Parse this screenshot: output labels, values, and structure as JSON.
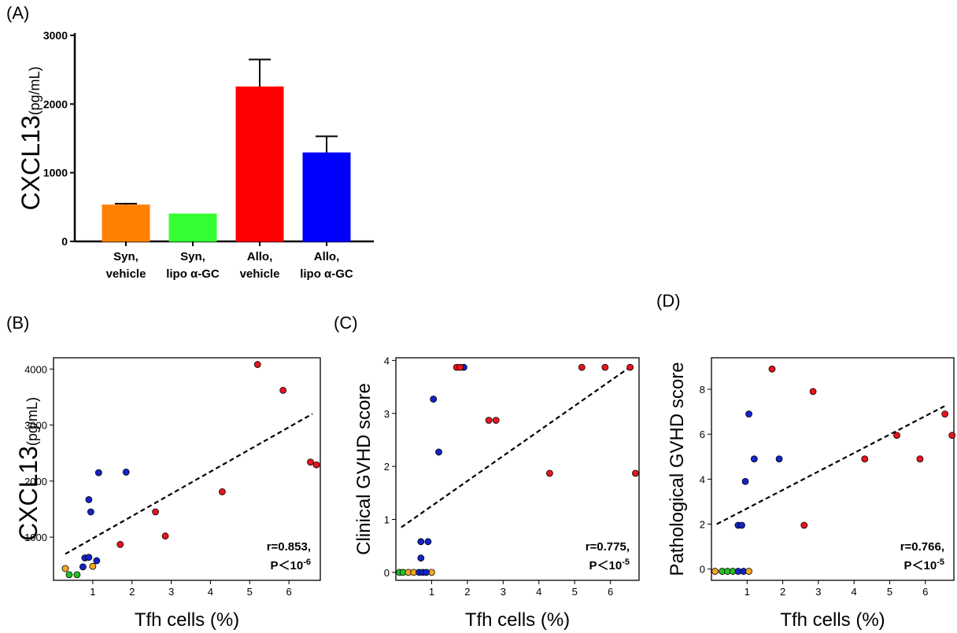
{
  "chart_data": [
    {
      "panel": "(A)",
      "type": "bar",
      "categories": [
        [
          "Syn,",
          "vehicle"
        ],
        [
          "Syn,",
          "lipo α-GC"
        ],
        [
          "Allo,",
          "vehicle"
        ],
        [
          "Allo,",
          "lipo α-GC"
        ]
      ],
      "values": [
        530,
        400,
        2250,
        1290
      ],
      "errors": [
        20,
        0,
        400,
        240
      ],
      "colors": [
        "#ff8000",
        "#33ff33",
        "#ff0000",
        "#0000ff"
      ],
      "ylabel_main": "CXCL13",
      "ylabel_unit": "(pg/mL)",
      "yticks": [
        0,
        1000,
        2000,
        3000
      ],
      "ylim": [
        0,
        3000
      ]
    },
    {
      "panel": "(B)",
      "type": "scatter",
      "xlabel": "Tfh cells (%)",
      "ylabel_main": "CXCL13",
      "ylabel_unit": "(pg/mL)",
      "xlim": [
        0,
        6.8
      ],
      "ylim": [
        230,
        4200
      ],
      "xticks": [
        1,
        2,
        3,
        4,
        5,
        6
      ],
      "yticks": [
        1000,
        2000,
        3000,
        4000
      ],
      "fit": {
        "x1": 0.3,
        "y1": 700,
        "x2": 6.6,
        "y2": 3200
      },
      "stat_r": "r=0.853,",
      "stat_p": "P＜10",
      "stat_exp": "-6",
      "points": [
        {
          "x": 0.3,
          "y": 440,
          "c": "orange"
        },
        {
          "x": 0.4,
          "y": 330,
          "c": "green"
        },
        {
          "x": 0.6,
          "y": 330,
          "c": "green"
        },
        {
          "x": 1.0,
          "y": 480,
          "c": "orange"
        },
        {
          "x": 0.75,
          "y": 470,
          "c": "blue"
        },
        {
          "x": 0.8,
          "y": 630,
          "c": "blue"
        },
        {
          "x": 0.9,
          "y": 640,
          "c": "blue"
        },
        {
          "x": 1.1,
          "y": 580,
          "c": "blue"
        },
        {
          "x": 0.9,
          "y": 1670,
          "c": "blue"
        },
        {
          "x": 0.95,
          "y": 1450,
          "c": "blue"
        },
        {
          "x": 1.15,
          "y": 2150,
          "c": "blue"
        },
        {
          "x": 1.85,
          "y": 2160,
          "c": "blue"
        },
        {
          "x": 1.7,
          "y": 870,
          "c": "red"
        },
        {
          "x": 2.6,
          "y": 1450,
          "c": "red"
        },
        {
          "x": 2.85,
          "y": 1020,
          "c": "red"
        },
        {
          "x": 4.3,
          "y": 1810,
          "c": "red"
        },
        {
          "x": 5.2,
          "y": 4080,
          "c": "red"
        },
        {
          "x": 5.85,
          "y": 3620,
          "c": "red"
        },
        {
          "x": 6.55,
          "y": 2340,
          "c": "red"
        },
        {
          "x": 6.7,
          "y": 2290,
          "c": "red"
        }
      ]
    },
    {
      "panel": "(C)",
      "type": "scatter",
      "xlabel": "Tfh cells (%)",
      "ylabel_main": "Clinical GVHD score",
      "xlim": [
        0,
        6.8
      ],
      "ylim": [
        -0.15,
        4.05
      ],
      "xticks": [
        1,
        2,
        3,
        4,
        5,
        6
      ],
      "yticks": [
        0,
        1,
        2,
        3,
        4
      ],
      "fit": {
        "x1": 0.15,
        "y1": 0.85,
        "x2": 6.6,
        "y2": 3.9
      },
      "stat_r": "r=0.775,",
      "stat_p": "P＜10",
      "stat_exp": "-5",
      "points": [
        {
          "x": 0.1,
          "y": 0,
          "c": "green"
        },
        {
          "x": 0.2,
          "y": 0,
          "c": "green"
        },
        {
          "x": 0.35,
          "y": 0,
          "c": "orange"
        },
        {
          "x": 0.5,
          "y": 0,
          "c": "orange"
        },
        {
          "x": 1.0,
          "y": 0,
          "c": "orange"
        },
        {
          "x": 0.65,
          "y": 0,
          "c": "blue"
        },
        {
          "x": 0.75,
          "y": 0,
          "c": "blue"
        },
        {
          "x": 0.85,
          "y": 0,
          "c": "blue"
        },
        {
          "x": 0.7,
          "y": 0.27,
          "c": "blue"
        },
        {
          "x": 0.7,
          "y": 0.58,
          "c": "blue"
        },
        {
          "x": 0.9,
          "y": 0.58,
          "c": "blue"
        },
        {
          "x": 1.05,
          "y": 3.27,
          "c": "blue"
        },
        {
          "x": 1.2,
          "y": 2.27,
          "c": "blue"
        },
        {
          "x": 1.9,
          "y": 3.87,
          "c": "blue"
        },
        {
          "x": 1.7,
          "y": 3.87,
          "c": "red"
        },
        {
          "x": 1.8,
          "y": 3.87,
          "c": "red"
        },
        {
          "x": 2.6,
          "y": 2.87,
          "c": "red"
        },
        {
          "x": 2.8,
          "y": 2.87,
          "c": "red"
        },
        {
          "x": 4.3,
          "y": 1.87,
          "c": "red"
        },
        {
          "x": 5.2,
          "y": 3.87,
          "c": "red"
        },
        {
          "x": 5.85,
          "y": 3.87,
          "c": "red"
        },
        {
          "x": 6.55,
          "y": 3.87,
          "c": "red"
        },
        {
          "x": 6.7,
          "y": 1.87,
          "c": "red"
        }
      ]
    },
    {
      "panel": "(D)",
      "type": "scatter",
      "xlabel": "Tfh cells (%)",
      "ylabel_main": "Pathological GVHD score",
      "xlim": [
        0,
        6.8
      ],
      "ylim": [
        -0.5,
        9.4
      ],
      "xticks": [
        1,
        2,
        3,
        4,
        5,
        6
      ],
      "yticks": [
        0,
        2,
        4,
        6,
        8
      ],
      "fit": {
        "x1": 0.15,
        "y1": 2.0,
        "x2": 6.6,
        "y2": 7.3
      },
      "stat_r": "r=0.766,",
      "stat_p": "P＜10",
      "stat_exp": "-5",
      "points": [
        {
          "x": 0.1,
          "y": -0.1,
          "c": "orange"
        },
        {
          "x": 0.3,
          "y": -0.1,
          "c": "green"
        },
        {
          "x": 0.45,
          "y": -0.1,
          "c": "green"
        },
        {
          "x": 0.6,
          "y": -0.1,
          "c": "green"
        },
        {
          "x": 0.75,
          "y": -0.1,
          "c": "blue"
        },
        {
          "x": 0.9,
          "y": -0.1,
          "c": "blue"
        },
        {
          "x": 1.05,
          "y": -0.1,
          "c": "orange"
        },
        {
          "x": 0.75,
          "y": 1.95,
          "c": "blue"
        },
        {
          "x": 0.85,
          "y": 1.95,
          "c": "blue"
        },
        {
          "x": 0.95,
          "y": 3.9,
          "c": "blue"
        },
        {
          "x": 1.05,
          "y": 6.9,
          "c": "blue"
        },
        {
          "x": 1.2,
          "y": 4.9,
          "c": "blue"
        },
        {
          "x": 1.9,
          "y": 4.9,
          "c": "blue"
        },
        {
          "x": 1.7,
          "y": 8.9,
          "c": "red"
        },
        {
          "x": 2.6,
          "y": 1.95,
          "c": "red"
        },
        {
          "x": 2.85,
          "y": 7.9,
          "c": "red"
        },
        {
          "x": 4.3,
          "y": 4.9,
          "c": "red"
        },
        {
          "x": 5.2,
          "y": 5.95,
          "c": "red"
        },
        {
          "x": 5.85,
          "y": 4.9,
          "c": "red"
        },
        {
          "x": 6.55,
          "y": 6.9,
          "c": "red"
        },
        {
          "x": 6.75,
          "y": 5.95,
          "c": "red"
        }
      ]
    }
  ],
  "point_colors": {
    "red": "#e8141e",
    "blue": "#1424c8",
    "green": "#26c026",
    "orange": "#f5a623"
  }
}
